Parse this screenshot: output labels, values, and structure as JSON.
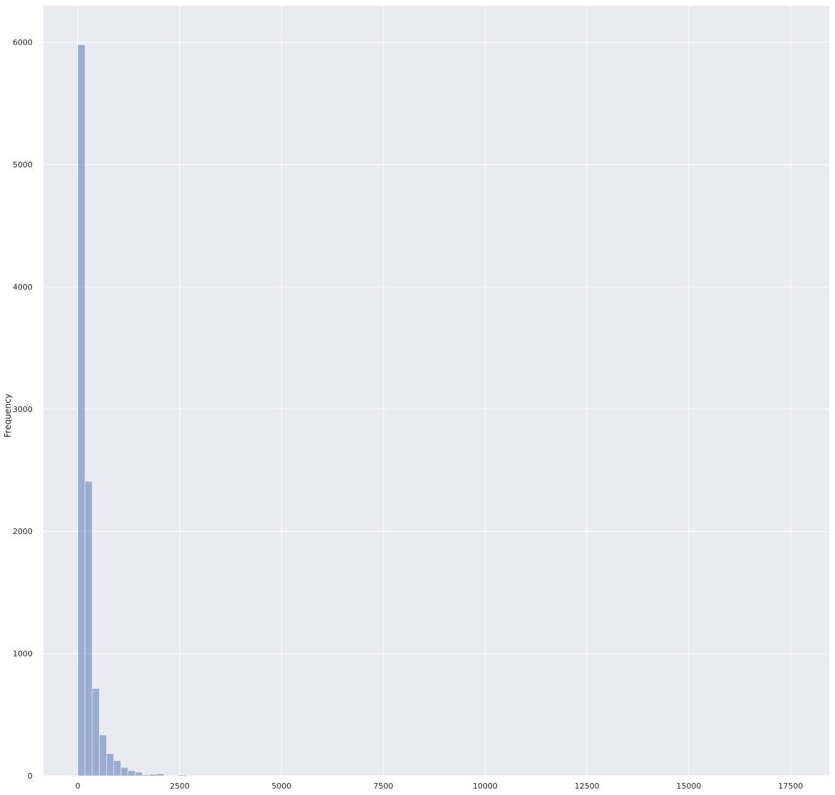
{
  "chart_data": {
    "type": "bar",
    "title": "",
    "xlabel": "",
    "ylabel": "Frequency",
    "xlim": [
      -850,
      18450
    ],
    "ylim": [
      0,
      6300
    ],
    "bin_width": 176,
    "bins": [
      {
        "x0": 0,
        "x1": 176,
        "count": 5980
      },
      {
        "x0": 176,
        "x1": 352,
        "count": 2410
      },
      {
        "x0": 352,
        "x1": 528,
        "count": 715
      },
      {
        "x0": 528,
        "x1": 704,
        "count": 335
      },
      {
        "x0": 704,
        "x1": 880,
        "count": 182
      },
      {
        "x0": 880,
        "x1": 1056,
        "count": 125
      },
      {
        "x0": 1056,
        "x1": 1232,
        "count": 68
      },
      {
        "x0": 1232,
        "x1": 1408,
        "count": 42
      },
      {
        "x0": 1408,
        "x1": 1584,
        "count": 30
      },
      {
        "x0": 1584,
        "x1": 1760,
        "count": 8
      },
      {
        "x0": 1760,
        "x1": 1936,
        "count": 14
      },
      {
        "x0": 1936,
        "x1": 2112,
        "count": 17
      },
      {
        "x0": 2112,
        "x1": 2288,
        "count": 2
      },
      {
        "x0": 2288,
        "x1": 2464,
        "count": 3
      },
      {
        "x0": 2464,
        "x1": 2640,
        "count": 8
      },
      {
        "x0": 2640,
        "x1": 2816,
        "count": 2
      }
    ],
    "x_ticks": [
      0,
      2500,
      5000,
      7500,
      10000,
      12500,
      15000,
      17500
    ],
    "y_ticks": [
      0,
      1000,
      2000,
      3000,
      4000,
      5000,
      6000
    ],
    "grid": true,
    "colors": {
      "background": "#eaeaf2",
      "grid": "#ffffff",
      "bar": "#4c72b0",
      "bar_opacity": 0.5
    }
  }
}
